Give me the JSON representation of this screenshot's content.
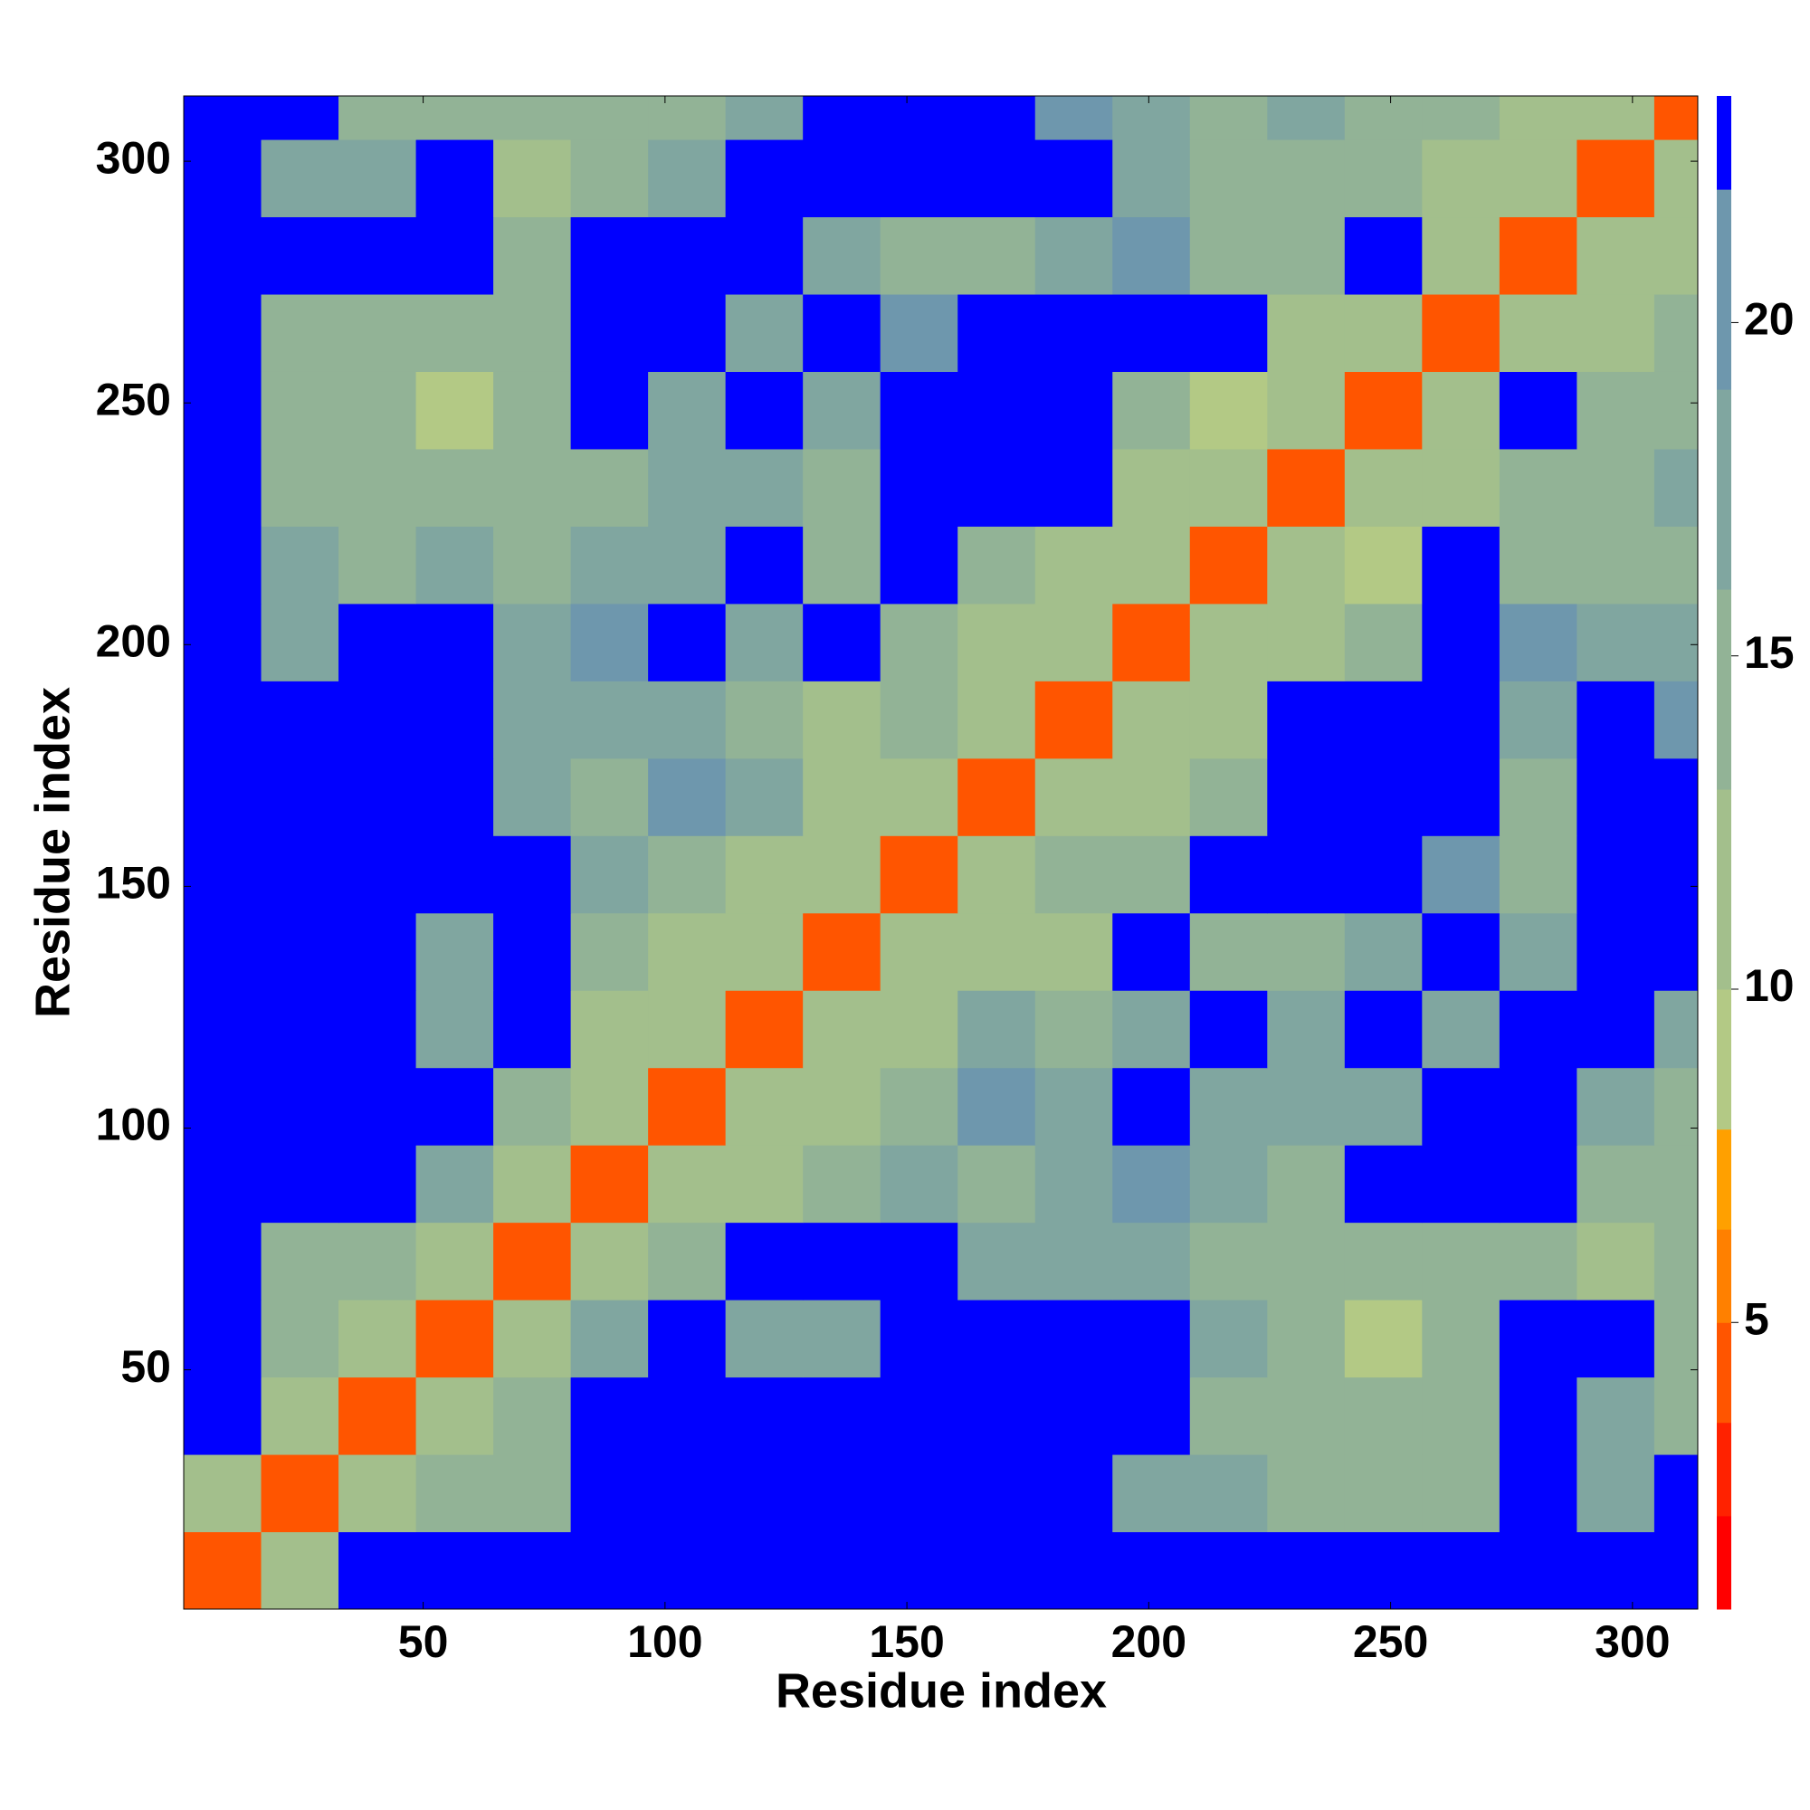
{
  "chart_data": {
    "type": "heatmap",
    "xlabel": "Residue index",
    "ylabel": "Residue index",
    "xlim": [
      0.5,
      313.5
    ],
    "ylim": [
      0.5,
      313.5
    ],
    "xticks": [
      50,
      100,
      150,
      200,
      250,
      300
    ],
    "yticks": [
      50,
      100,
      150,
      200,
      250,
      300
    ],
    "xbins": [
      0.5,
      16.5,
      32.5,
      48.5,
      64.5,
      80.5,
      96.5,
      112.5,
      128.5,
      144.5,
      160.5,
      176.5,
      192.5,
      208.5,
      224.5,
      240.5,
      256.5,
      272.5,
      288.5,
      304.5,
      313.5
    ],
    "ybins": [
      0.5,
      16.5,
      32.5,
      48.5,
      64.5,
      80.5,
      96.5,
      112.5,
      128.5,
      144.5,
      160.5,
      176.5,
      192.5,
      208.5,
      224.5,
      240.5,
      256.5,
      272.5,
      288.5,
      304.5,
      313.5
    ],
    "values": [
      [
        4,
        12,
        24,
        24,
        24,
        24,
        24,
        24,
        24,
        24,
        24,
        24,
        24,
        24,
        24,
        24,
        24,
        24,
        24,
        24
      ],
      [
        12,
        4,
        12,
        13,
        15,
        24,
        24,
        24,
        24,
        24,
        24,
        24,
        18,
        16,
        15,
        14,
        14,
        24,
        16,
        24
      ],
      [
        24,
        12,
        4,
        12,
        14,
        24,
        24,
        24,
        24,
        24,
        24,
        24,
        24,
        14,
        14,
        13,
        14,
        24,
        17,
        15
      ],
      [
        24,
        13,
        12,
        4,
        12,
        16,
        24,
        18,
        18,
        24,
        24,
        24,
        24,
        16,
        14,
        8,
        14,
        24,
        24,
        15
      ],
      [
        24,
        15,
        14,
        12,
        4,
        12,
        15,
        24,
        24,
        24,
        18,
        17,
        16,
        14,
        14,
        13,
        14,
        13,
        12,
        13
      ],
      [
        24,
        24,
        24,
        16,
        12,
        4,
        12,
        12,
        14,
        16,
        15,
        16,
        20,
        16,
        14,
        24,
        24,
        24,
        14,
        15
      ],
      [
        24,
        24,
        24,
        24,
        15,
        12,
        4,
        12,
        12,
        15,
        20,
        16,
        24,
        16,
        18,
        18,
        24,
        24,
        18,
        14
      ],
      [
        24,
        24,
        24,
        18,
        24,
        12,
        12,
        4,
        12,
        11,
        16,
        14,
        16,
        24,
        17,
        24,
        18,
        24,
        24,
        18
      ],
      [
        24,
        24,
        24,
        18,
        24,
        14,
        12,
        12,
        4,
        12,
        12,
        10,
        24,
        15,
        15,
        16,
        24,
        16,
        24,
        24
      ],
      [
        24,
        24,
        24,
        24,
        24,
        16,
        15,
        11,
        12,
        4,
        12,
        14,
        15,
        24,
        24,
        24,
        19,
        15,
        24,
        24
      ],
      [
        24,
        24,
        24,
        24,
        18,
        15,
        20,
        16,
        12,
        12,
        4,
        12,
        12,
        13,
        24,
        24,
        24,
        15,
        24,
        24
      ],
      [
        24,
        24,
        24,
        24,
        17,
        16,
        16,
        14,
        10,
        14,
        12,
        4,
        12,
        11,
        24,
        24,
        24,
        17,
        24,
        19
      ],
      [
        24,
        18,
        24,
        24,
        16,
        20,
        24,
        16,
        24,
        15,
        12,
        12,
        4,
        12,
        12,
        14,
        24,
        19,
        18,
        18
      ],
      [
        24,
        16,
        14,
        16,
        14,
        16,
        16,
        24,
        15,
        24,
        13,
        11,
        12,
        4,
        12,
        9,
        24,
        15,
        14,
        15
      ],
      [
        24,
        15,
        14,
        14,
        14,
        14,
        18,
        17,
        15,
        24,
        24,
        24,
        12,
        12,
        4,
        12,
        11,
        14,
        14,
        16
      ],
      [
        24,
        14,
        13,
        8,
        13,
        24,
        18,
        24,
        16,
        24,
        24,
        24,
        14,
        9,
        12,
        4,
        12,
        24,
        14,
        14
      ],
      [
        24,
        14,
        14,
        14,
        14,
        24,
        24,
        18,
        24,
        19,
        24,
        24,
        24,
        24,
        11,
        12,
        4,
        12,
        12,
        14
      ],
      [
        24,
        24,
        24,
        24,
        13,
        24,
        24,
        24,
        16,
        15,
        15,
        17,
        19,
        15,
        14,
        24,
        12,
        4,
        12,
        12
      ],
      [
        24,
        16,
        17,
        24,
        12,
        14,
        18,
        24,
        24,
        24,
        24,
        24,
        18,
        14,
        14,
        14,
        12,
        12,
        4,
        12
      ],
      [
        24,
        24,
        15,
        15,
        13,
        15,
        14,
        18,
        24,
        24,
        24,
        19,
        18,
        15,
        16,
        14,
        14,
        12,
        12,
        4
      ]
    ],
    "colorbar_levels": [
      0.7,
      2.1,
      3.5,
      5,
      6.4,
      7.9,
      10,
      13,
      16,
      19,
      22,
      23.4
    ],
    "colorbar_colors": [
      "#ff0000",
      "#ff2200",
      "#ff5500",
      "#ff8000",
      "#ffa000",
      "#b3c985",
      "#a3bf8c",
      "#92b396",
      "#80a6a0",
      "#6e97ad",
      "#0000ff"
    ],
    "colorbar_ticks": [
      5,
      10,
      15,
      20
    ]
  }
}
